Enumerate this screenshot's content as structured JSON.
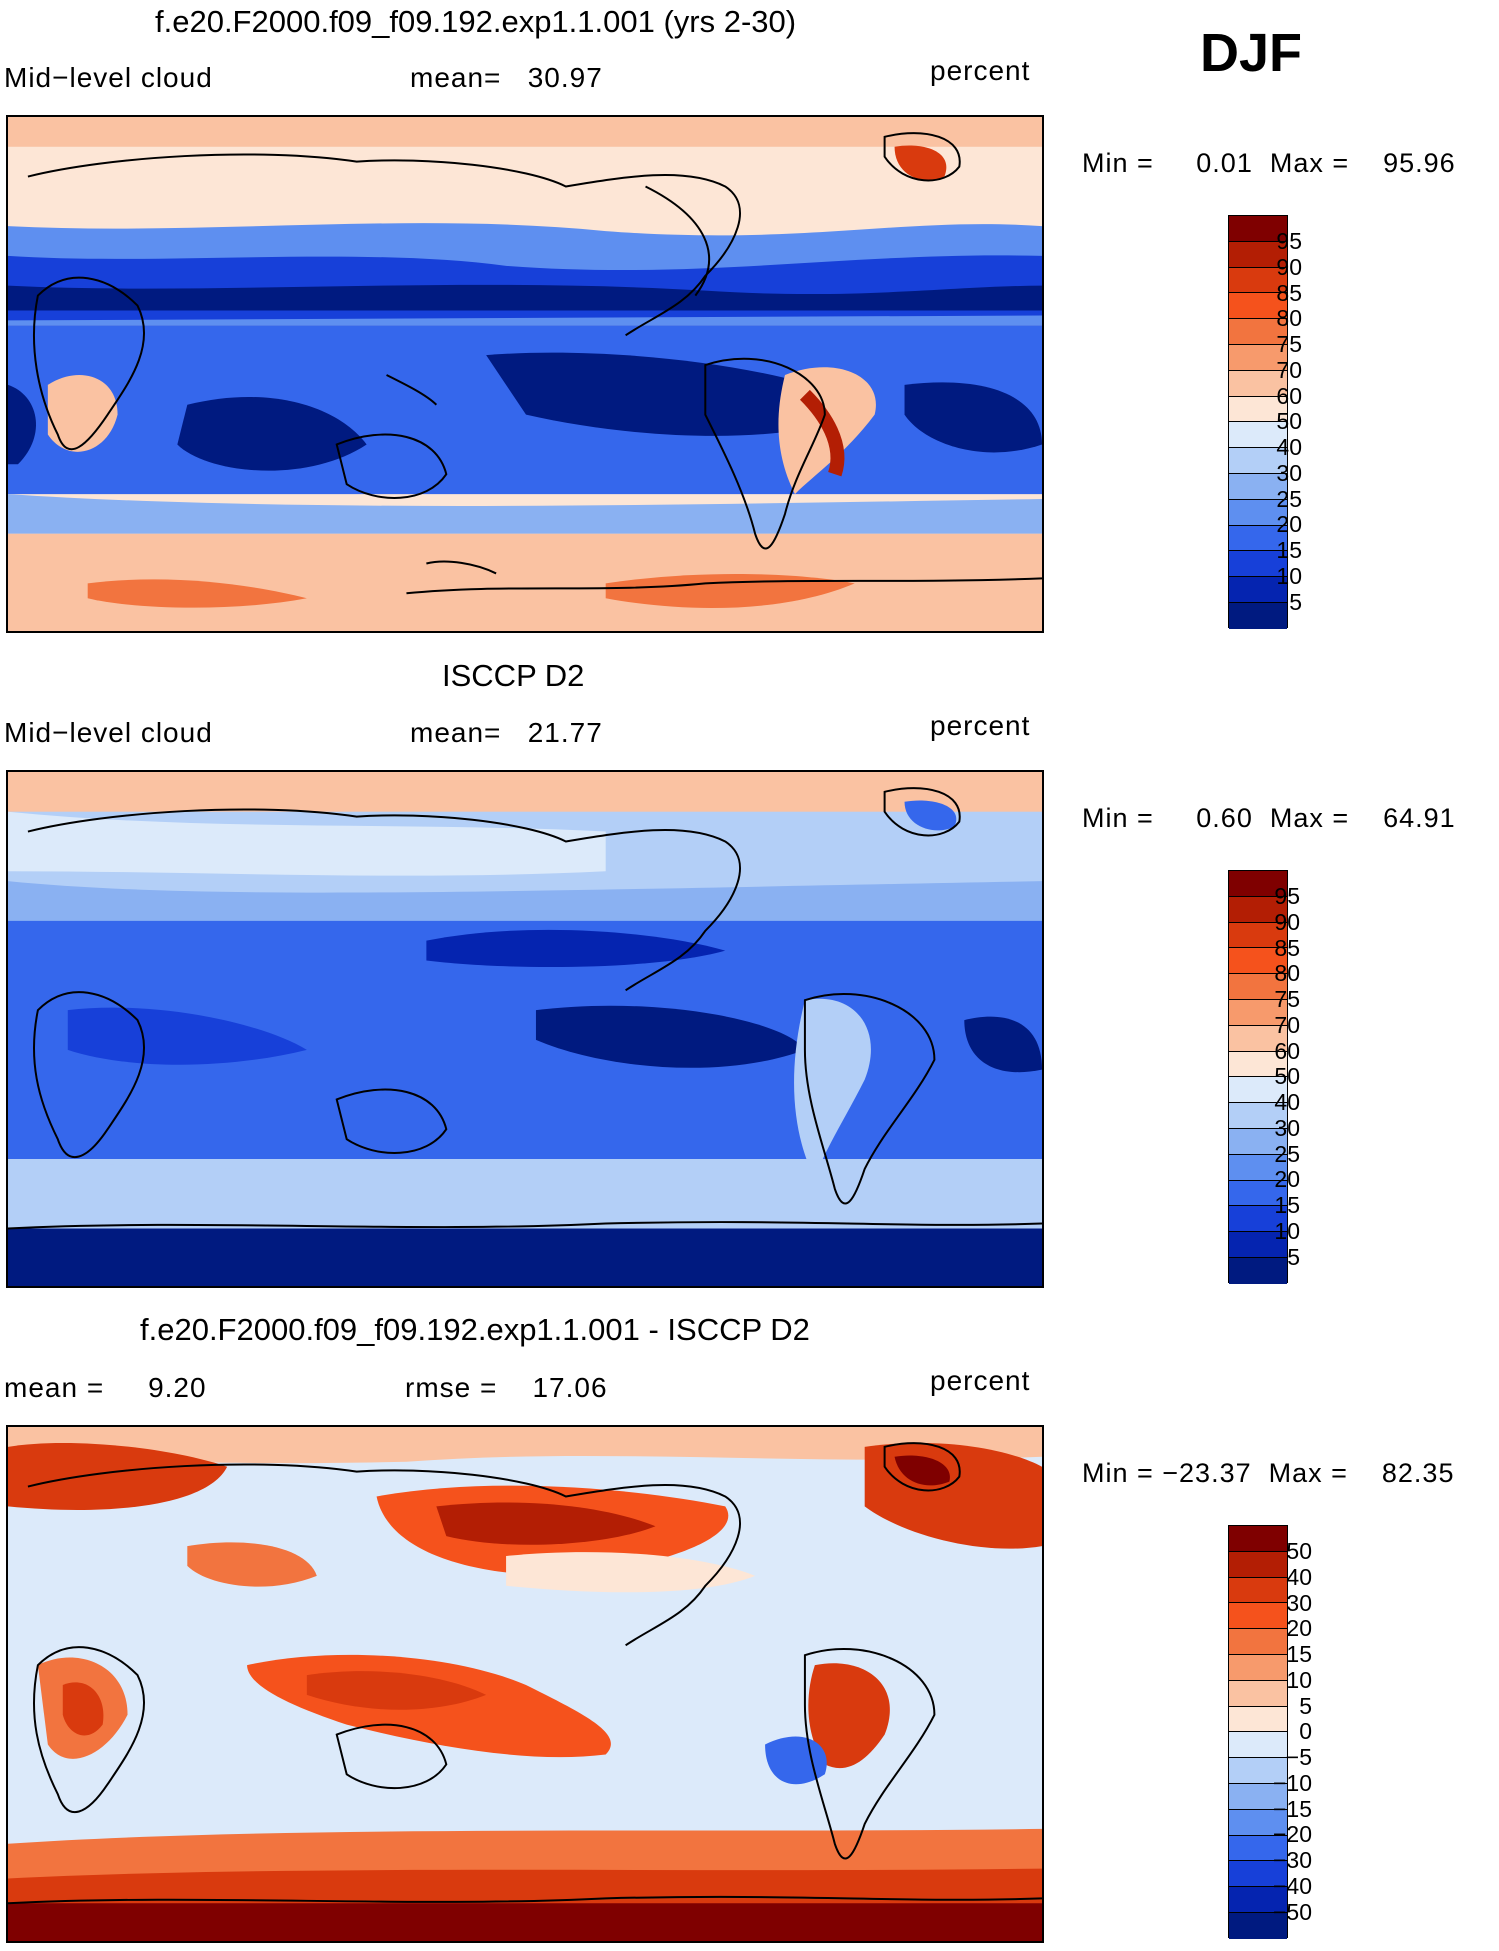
{
  "season": "DJF",
  "panels": [
    {
      "title": "f.e20.F2000.f09_f09.192.exp1.1.001 (yrs 2-30)",
      "left": "Mid−level cloud",
      "center": "mean=   30.97",
      "units": "percent",
      "minmax": "Min =     0.01  Max =    95.96",
      "colorbar_labels": [
        "95",
        "90",
        "85",
        "80",
        "75",
        "70",
        "60",
        "50",
        "40",
        "30",
        "25",
        "20",
        "15",
        "10",
        "5"
      ],
      "colors": [
        "#7f0000",
        "#b31e04",
        "#d93a0e",
        "#f5521c",
        "#f2743f",
        "#f79a6c",
        "#fac2a2",
        "#fde6d6",
        "#dceafa",
        "#b3cff7",
        "#8ab1f2",
        "#5e8ff0",
        "#3567ec",
        "#1740d9",
        "#0524b0",
        "#001a80"
      ]
    },
    {
      "title": "ISCCP D2",
      "left": "Mid−level cloud",
      "center": "mean=   21.77",
      "units": "percent",
      "minmax": "Min =     0.60  Max =    64.91",
      "colorbar_labels": [
        "95",
        "90",
        "85",
        "80",
        "75",
        "70",
        "60",
        "50",
        "40",
        "30",
        "25",
        "20",
        "15",
        "10",
        "5"
      ],
      "colors": [
        "#7f0000",
        "#b31e04",
        "#d93a0e",
        "#f5521c",
        "#f2743f",
        "#f79a6c",
        "#fac2a2",
        "#fde6d6",
        "#dceafa",
        "#b3cff7",
        "#8ab1f2",
        "#5e8ff0",
        "#3567ec",
        "#1740d9",
        "#0524b0",
        "#001a80"
      ]
    },
    {
      "title": "f.e20.F2000.f09_f09.192.exp1.1.001 - ISCCP D2",
      "left": "mean =     9.20",
      "center": "rmse =    17.06",
      "units": "percent",
      "minmax": "Min = −23.37  Max =    82.35",
      "colorbar_labels": [
        "50",
        "40",
        "30",
        "20",
        "15",
        "10",
        "5",
        "0",
        "−5",
        "−10",
        "−15",
        "−20",
        "−30",
        "−40",
        "−50"
      ],
      "colors": [
        "#7f0000",
        "#b31e04",
        "#d93a0e",
        "#f5521c",
        "#f2743f",
        "#f79a6c",
        "#fac2a2",
        "#fde6d6",
        "#dceafa",
        "#b3cff7",
        "#8ab1f2",
        "#5e8ff0",
        "#3567ec",
        "#1740d9",
        "#0524b0",
        "#001a80"
      ]
    }
  ]
}
